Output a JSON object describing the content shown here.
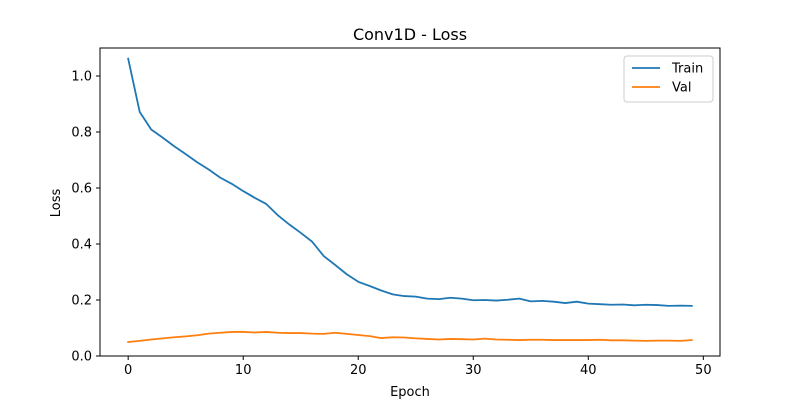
{
  "chart_data": {
    "type": "line",
    "title": "Conv1D - Loss",
    "xlabel": "Epoch",
    "ylabel": "Loss",
    "xlim": [
      -2.45,
      51.45
    ],
    "ylim": [
      0.0,
      1.1
    ],
    "xticks": [
      0,
      10,
      20,
      30,
      40,
      50
    ],
    "yticks": [
      0.0,
      0.2,
      0.4,
      0.6,
      0.8,
      1.0
    ],
    "ytick_labels": [
      "0.0",
      "0.2",
      "0.4",
      "0.6",
      "0.8",
      "1.0"
    ],
    "grid": false,
    "legend_position": "top-right",
    "x": [
      0,
      1,
      2,
      3,
      4,
      5,
      6,
      7,
      8,
      9,
      10,
      11,
      12,
      13,
      14,
      15,
      16,
      17,
      18,
      19,
      20,
      21,
      22,
      23,
      24,
      25,
      26,
      27,
      28,
      29,
      30,
      31,
      32,
      33,
      34,
      35,
      36,
      37,
      38,
      39,
      40,
      41,
      42,
      43,
      44,
      45,
      46,
      47,
      48,
      49
    ],
    "series": [
      {
        "name": "Train",
        "color": "#1f77b4",
        "values": [
          1.062,
          0.872,
          0.809,
          0.78,
          0.749,
          0.721,
          0.692,
          0.666,
          0.637,
          0.615,
          0.589,
          0.565,
          0.543,
          0.503,
          0.47,
          0.44,
          0.408,
          0.357,
          0.325,
          0.292,
          0.265,
          0.25,
          0.234,
          0.22,
          0.214,
          0.212,
          0.205,
          0.203,
          0.208,
          0.205,
          0.199,
          0.2,
          0.198,
          0.201,
          0.205,
          0.195,
          0.197,
          0.194,
          0.189,
          0.194,
          0.187,
          0.185,
          0.183,
          0.184,
          0.181,
          0.183,
          0.182,
          0.179,
          0.18,
          0.179
        ]
      },
      {
        "name": "Val",
        "color": "#ff7f0e",
        "values": [
          0.05,
          0.054,
          0.059,
          0.063,
          0.067,
          0.07,
          0.074,
          0.08,
          0.083,
          0.086,
          0.086,
          0.084,
          0.086,
          0.083,
          0.082,
          0.082,
          0.08,
          0.079,
          0.083,
          0.079,
          0.075,
          0.071,
          0.064,
          0.067,
          0.066,
          0.063,
          0.061,
          0.059,
          0.061,
          0.06,
          0.059,
          0.062,
          0.059,
          0.058,
          0.057,
          0.058,
          0.058,
          0.057,
          0.057,
          0.057,
          0.057,
          0.058,
          0.056,
          0.056,
          0.055,
          0.054,
          0.055,
          0.055,
          0.054,
          0.057
        ]
      }
    ]
  }
}
